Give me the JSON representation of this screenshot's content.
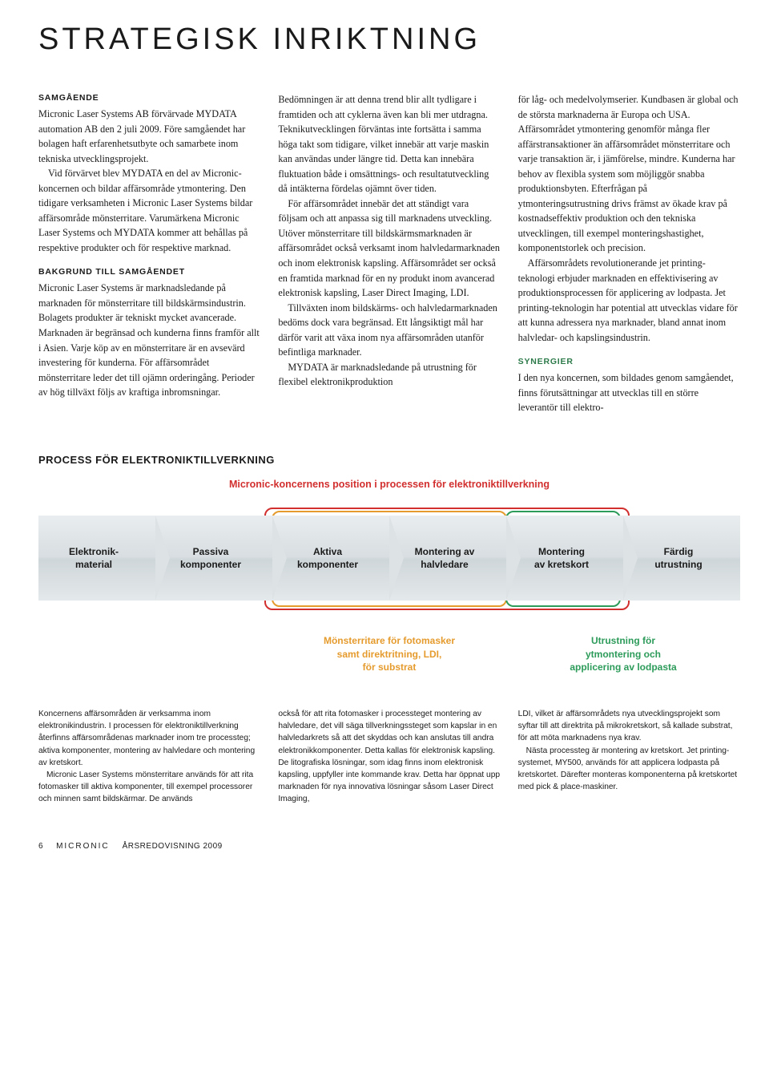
{
  "title": "STRATEGISK INRIKTNING",
  "col1": {
    "h1": "SAMGÅENDE",
    "p1": "Micronic Laser Systems AB förvärvade MYDATA automation AB den 2 juli 2009. Före samgåendet har bolagen haft erfarenhetsutbyte och samarbete inom tekniska utvecklingsprojekt.",
    "p2": "Vid förvärvet blev MYDATA en del av Micronic-koncernen och bildar affärsområde ytmontering. Den tidigare verksamheten i Micronic Laser Systems bildar affärsområde mönsterritare. Varumärkena Micronic Laser Systems och MYDATA kommer att behållas på respektive produkter och för respektive marknad.",
    "h2": "BAKGRUND TILL SAMGÅENDET",
    "p3": "Micronic Laser Systems är marknadsledande på marknaden för mönsterritare till bildskärmsindustrin. Bolagets produkter är tekniskt mycket avancerade. Marknaden är begränsad och kunderna finns framför allt i Asien. Varje köp av en mönsterritare är en avsevärd investering för kunderna. För affärsområdet mönsterritare leder det till ojämn orderingång. Perioder av hög tillväxt följs av kraftiga inbromsningar."
  },
  "col2": {
    "p1": "Bedömningen är att denna trend blir allt tydligare i framtiden och att cyklerna även kan bli mer utdragna. Teknikutvecklingen förväntas inte fortsätta i samma höga takt som tidigare, vilket innebär att varje maskin kan användas under längre tid. Detta kan innebära fluktuation både i omsättnings- och resultatutveckling då intäkterna fördelas ojämnt över tiden.",
    "p2": "För affärsområdet innebär det att ständigt vara följsam och att anpassa sig till marknadens utveckling. Utöver mönsterritare till bildskärmsmarknaden är affärsområdet också verksamt inom halvledarmarknaden och inom elektronisk kapsling. Affärsområdet ser också en framtida marknad för en ny produkt inom avancerad elektronisk kapsling, Laser Direct Imaging, LDI.",
    "p3": "Tillväxten inom bildskärms- och halvledarmarknaden bedöms dock vara begränsad. Ett långsiktigt mål har därför varit att växa inom nya affärsområden utanför befintliga marknader.",
    "p4": "MYDATA är marknadsledande på utrustning för flexibel elektronikproduktion"
  },
  "col3": {
    "p1": "för låg- och medelvolymserier. Kundbasen är global och de största marknaderna är Europa och USA. Affärsområdet ytmontering genomför många fler affärstransaktioner än affärsområdet mönsterritare och varje transaktion är, i jämförelse, mindre. Kunderna har behov av flexibla system som möjliggör snabba produktionsbyten. Efterfrågan på ytmonteringsutrustning drivs främst av ökade krav på kostnadseffektiv produktion och den tekniska utvecklingen, till exempel monteringshastighet, komponentstorlek och precision.",
    "p2": "Affärsområdets revolutionerande jet printing-teknologi erbjuder marknaden en effektivisering av produktionsprocessen för applicering av lodpasta. Jet printing-teknologin har potential att utvecklas vidare för att kunna adressera nya marknader, bland annat inom halvledar- och kapslingsindustrin.",
    "h1": "SYNERGIER",
    "p3": "I den nya koncernen, som bildades genom samgåendet, finns förutsättningar att utvecklas till en större leverantör till elektro-"
  },
  "process": {
    "title": "PROCESS FÖR ELEKTRONIKTILLVERKNING",
    "caption": "Micronic-koncernens position i processen för elektroniktillverkning",
    "caption_color": "#d22f2f",
    "border_red": "#d22f2f",
    "border_orange": "#e59b2d",
    "border_green": "#2d9b5a",
    "steps": [
      "Elektronik-\nmaterial",
      "Passiva\nkomponenter",
      "Aktiva\nkomponenter",
      "Montering av\nhalvledare",
      "Montering\nav kretskort",
      "Färdig\nutrustning"
    ],
    "sub1": "Mönsterritare för fotomasker\nsamt direktritning, LDI,\nför substrat",
    "sub1_color": "#e59b2d",
    "sub2": "Utrustning för\nytmontering och\napplicering av lodpasta",
    "sub2_color": "#2d9b5a"
  },
  "lower": {
    "c1p1": "Koncernens affärsområden är verksamma inom elektronikindustrin. I processen för elektroniktillverkning återfinns affärsområdenas marknader inom tre processteg; aktiva komponenter, montering av halvledare och montering av kretskort.",
    "c1p2": "Micronic Laser Systems mönsterritare används för att rita fotomasker till aktiva komponenter, till exempel processorer och minnen samt bildskärmar. De används",
    "c2p1": "också för att rita fotomasker i processteget montering av halvledare, det vill säga tillverkningssteget som kapslar in en halvledarkrets så att det skyddas och kan anslutas till andra elektronikkomponenter. Detta kallas för elektronisk kapsling. De litografiska lösningar, som idag finns inom elektronisk kapsling, uppfyller inte kommande krav. Detta har öppnat upp marknaden för nya innovativa lösningar såsom Laser Direct Imaging,",
    "c3p1": "LDI, vilket är affärsområdets nya utvecklingsprojekt som syftar till att direktrita på mikrokretskort, så kallade substrat, för att möta marknadens nya krav.",
    "c3p2": "Nästa processteg är montering av kretskort. Jet printing-systemet, MY500, används för att applicera lodpasta på kretskortet. Därefter monteras komponenterna på kretskortet med pick & place-maskiner."
  },
  "footer": {
    "page": "6",
    "company": "MICRONIC",
    "report": "ÅRSREDOVISNING 2009"
  }
}
